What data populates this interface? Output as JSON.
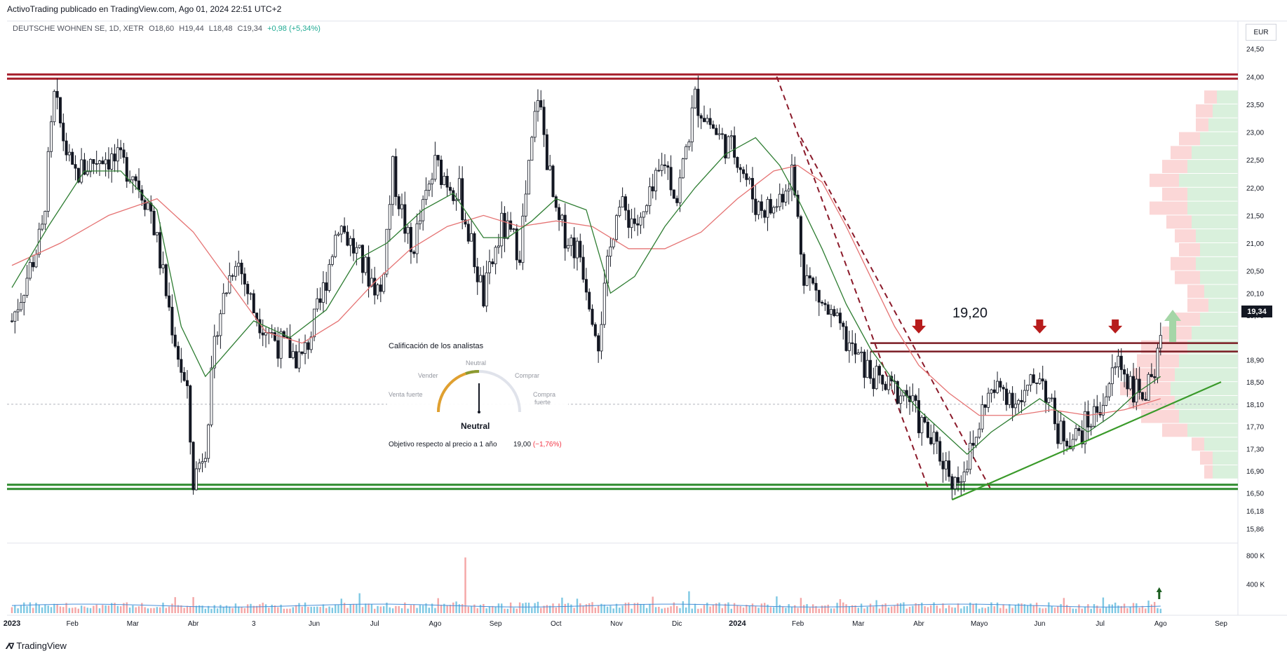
{
  "header": {
    "published": "ActivoTrading publicado en TradingView.com, Ago 01, 2024 22:51 UTC+2",
    "symbol": "DEUTSCHE WOHNEN SE, 1D, XETR",
    "open": "O18,60",
    "high": "H19,44",
    "low": "L18,48",
    "close": "C19,34",
    "change": "+0,98 (+5,34%)"
  },
  "currency": "EUR",
  "last_price_label": "19,34",
  "level_label": "19,20",
  "footer_brand": "TradingView",
  "analyst_widget": {
    "title": "Calificación de los analistas",
    "labels": {
      "strong_sell": "Venta fuerte",
      "sell": "Vender",
      "neutral": "Neutral",
      "buy": "Comprar",
      "strong_buy_1": "Compra",
      "strong_buy_2": "fuerte"
    },
    "rating": "Neutral",
    "objective_label": "Objetivo respecto al precio a 1 año",
    "objective_value": "19,00",
    "objective_change": "(−1,76%)"
  },
  "colors": {
    "up": "#22ab94",
    "down": "#131722",
    "resistance": "#a61d2a",
    "support": "#2e8b2e",
    "sma_fast": "#2e7d32",
    "sma_slow": "#e57373",
    "trend_line": "#3a9a2a",
    "arrow_red": "#b71c1c",
    "arrow_green": "#a5d6a7",
    "vol_up": "#7ec8e3",
    "vol_down": "#f4a6a6"
  },
  "chart_data": {
    "type": "candlestick",
    "ylim": [
      15.6,
      25.0
    ],
    "y_ticks": [
      "24,50",
      "24,00",
      "23,50",
      "23,00",
      "22,50",
      "22,00",
      "21,50",
      "21,00",
      "20,50",
      "20,10",
      "19,70",
      "18,90",
      "18,50",
      "18,10",
      "17,70",
      "17,30",
      "16,90",
      "16,50",
      "16,18",
      "15,86"
    ],
    "y_tick_values": [
      24.5,
      24.0,
      23.5,
      23.0,
      22.5,
      22.0,
      21.5,
      21.0,
      20.5,
      20.1,
      19.7,
      18.9,
      18.5,
      18.1,
      17.7,
      17.3,
      16.9,
      16.5,
      16.18,
      15.86
    ],
    "volume_ticks": [
      "800 K",
      "400 K"
    ],
    "volume_tick_values": [
      800,
      400
    ],
    "x_ticks": [
      "2023",
      "Feb",
      "Mar",
      "Abr",
      "3",
      "Jun",
      "Jul",
      "Ago",
      "Sep",
      "Oct",
      "Nov",
      "Dic",
      "2024",
      "Feb",
      "Mar",
      "Abr",
      "Mayo",
      "Jun",
      "Jul",
      "Ago",
      "Sep"
    ],
    "x_tick_months": [
      0,
      1,
      2,
      3,
      4,
      5,
      6,
      7,
      8,
      9,
      10,
      11,
      12,
      13,
      14,
      15,
      16,
      17,
      18,
      19,
      20
    ],
    "monthly_closes": [
      {
        "m": 0.0,
        "v": 19.6
      },
      {
        "m": 0.5,
        "v": 21.2
      },
      {
        "m": 0.7,
        "v": 23.6
      },
      {
        "m": 1.0,
        "v": 22.2
      },
      {
        "m": 1.5,
        "v": 22.6
      },
      {
        "m": 2.0,
        "v": 22.3
      },
      {
        "m": 2.3,
        "v": 21.6
      },
      {
        "m": 2.6,
        "v": 19.8
      },
      {
        "m": 2.9,
        "v": 18.2
      },
      {
        "m": 3.0,
        "v": 16.7
      },
      {
        "m": 3.2,
        "v": 17.4
      },
      {
        "m": 3.4,
        "v": 19.6
      },
      {
        "m": 3.7,
        "v": 20.8
      },
      {
        "m": 4.0,
        "v": 19.8
      },
      {
        "m": 4.4,
        "v": 19.2
      },
      {
        "m": 4.8,
        "v": 18.9
      },
      {
        "m": 5.1,
        "v": 19.9
      },
      {
        "m": 5.4,
        "v": 21.4
      },
      {
        "m": 5.8,
        "v": 20.6
      },
      {
        "m": 6.1,
        "v": 20.1
      },
      {
        "m": 6.3,
        "v": 22.3
      },
      {
        "m": 6.6,
        "v": 20.8
      },
      {
        "m": 7.0,
        "v": 22.4
      },
      {
        "m": 7.4,
        "v": 21.9
      },
      {
        "m": 7.8,
        "v": 20.0
      },
      {
        "m": 8.1,
        "v": 21.3
      },
      {
        "m": 8.4,
        "v": 20.9
      },
      {
        "m": 8.7,
        "v": 23.7
      },
      {
        "m": 9.0,
        "v": 21.4
      },
      {
        "m": 9.4,
        "v": 20.8
      },
      {
        "m": 9.7,
        "v": 19.3
      },
      {
        "m": 10.0,
        "v": 21.7
      },
      {
        "m": 10.4,
        "v": 21.3
      },
      {
        "m": 10.8,
        "v": 22.5
      },
      {
        "m": 11.0,
        "v": 21.8
      },
      {
        "m": 11.3,
        "v": 23.6
      },
      {
        "m": 11.7,
        "v": 22.9
      },
      {
        "m": 12.0,
        "v": 22.6
      },
      {
        "m": 12.3,
        "v": 21.7
      },
      {
        "m": 12.6,
        "v": 21.6
      },
      {
        "m": 12.9,
        "v": 22.3
      },
      {
        "m": 13.1,
        "v": 20.5
      },
      {
        "m": 13.4,
        "v": 19.9
      },
      {
        "m": 13.7,
        "v": 19.4
      },
      {
        "m": 14.0,
        "v": 18.9
      },
      {
        "m": 14.4,
        "v": 18.4
      },
      {
        "m": 14.8,
        "v": 18.3
      },
      {
        "m": 15.0,
        "v": 17.8
      },
      {
        "m": 15.4,
        "v": 17.1
      },
      {
        "m": 15.6,
        "v": 16.7
      },
      {
        "m": 15.9,
        "v": 17.3
      },
      {
        "m": 16.1,
        "v": 18.2
      },
      {
        "m": 16.4,
        "v": 18.4
      },
      {
        "m": 16.7,
        "v": 18.1
      },
      {
        "m": 17.0,
        "v": 18.7
      },
      {
        "m": 17.3,
        "v": 17.6
      },
      {
        "m": 17.6,
        "v": 17.5
      },
      {
        "m": 17.9,
        "v": 17.9
      },
      {
        "m": 18.1,
        "v": 18.3
      },
      {
        "m": 18.3,
        "v": 18.9
      },
      {
        "m": 18.6,
        "v": 18.3
      },
      {
        "m": 18.9,
        "v": 18.4
      },
      {
        "m": 19.0,
        "v": 19.34
      }
    ],
    "sma_fast": [
      {
        "m": 0.0,
        "v": 20.2
      },
      {
        "m": 0.6,
        "v": 21.3
      },
      {
        "m": 1.2,
        "v": 22.3
      },
      {
        "m": 1.8,
        "v": 22.3
      },
      {
        "m": 2.4,
        "v": 21.6
      },
      {
        "m": 2.8,
        "v": 19.5
      },
      {
        "m": 3.2,
        "v": 18.6
      },
      {
        "m": 3.6,
        "v": 19.1
      },
      {
        "m": 4.0,
        "v": 19.6
      },
      {
        "m": 4.6,
        "v": 19.3
      },
      {
        "m": 5.2,
        "v": 19.8
      },
      {
        "m": 5.7,
        "v": 20.7
      },
      {
        "m": 6.2,
        "v": 21.0
      },
      {
        "m": 6.8,
        "v": 21.6
      },
      {
        "m": 7.3,
        "v": 21.9
      },
      {
        "m": 7.8,
        "v": 21.1
      },
      {
        "m": 8.2,
        "v": 21.1
      },
      {
        "m": 8.6,
        "v": 21.4
      },
      {
        "m": 9.0,
        "v": 21.8
      },
      {
        "m": 9.5,
        "v": 21.6
      },
      {
        "m": 9.9,
        "v": 20.1
      },
      {
        "m": 10.3,
        "v": 20.4
      },
      {
        "m": 10.8,
        "v": 21.3
      },
      {
        "m": 11.3,
        "v": 22.0
      },
      {
        "m": 11.8,
        "v": 22.6
      },
      {
        "m": 12.3,
        "v": 22.9
      },
      {
        "m": 12.7,
        "v": 22.4
      },
      {
        "m": 13.0,
        "v": 21.8
      },
      {
        "m": 13.4,
        "v": 20.9
      },
      {
        "m": 13.8,
        "v": 19.9
      },
      {
        "m": 14.2,
        "v": 19.1
      },
      {
        "m": 14.6,
        "v": 18.5
      },
      {
        "m": 15.0,
        "v": 18.0
      },
      {
        "m": 15.4,
        "v": 17.6
      },
      {
        "m": 15.8,
        "v": 17.2
      },
      {
        "m": 16.2,
        "v": 17.6
      },
      {
        "m": 16.6,
        "v": 17.9
      },
      {
        "m": 17.0,
        "v": 18.2
      },
      {
        "m": 17.4,
        "v": 17.9
      },
      {
        "m": 17.8,
        "v": 17.6
      },
      {
        "m": 18.2,
        "v": 17.9
      },
      {
        "m": 18.6,
        "v": 18.3
      },
      {
        "m": 19.0,
        "v": 18.6
      }
    ],
    "sma_slow": [
      {
        "m": 0.0,
        "v": 20.6
      },
      {
        "m": 0.8,
        "v": 21.0
      },
      {
        "m": 1.6,
        "v": 21.5
      },
      {
        "m": 2.4,
        "v": 21.8
      },
      {
        "m": 3.0,
        "v": 21.2
      },
      {
        "m": 3.6,
        "v": 20.3
      },
      {
        "m": 4.2,
        "v": 19.4
      },
      {
        "m": 4.8,
        "v": 19.2
      },
      {
        "m": 5.4,
        "v": 19.6
      },
      {
        "m": 6.0,
        "v": 20.3
      },
      {
        "m": 6.6,
        "v": 20.9
      },
      {
        "m": 7.2,
        "v": 21.3
      },
      {
        "m": 7.8,
        "v": 21.5
      },
      {
        "m": 8.4,
        "v": 21.3
      },
      {
        "m": 9.0,
        "v": 21.4
      },
      {
        "m": 9.6,
        "v": 21.3
      },
      {
        "m": 10.2,
        "v": 20.9
      },
      {
        "m": 10.8,
        "v": 20.9
      },
      {
        "m": 11.4,
        "v": 21.2
      },
      {
        "m": 12.0,
        "v": 21.8
      },
      {
        "m": 12.6,
        "v": 22.3
      },
      {
        "m": 13.0,
        "v": 22.4
      },
      {
        "m": 13.4,
        "v": 22.1
      },
      {
        "m": 13.8,
        "v": 21.3
      },
      {
        "m": 14.2,
        "v": 20.4
      },
      {
        "m": 14.6,
        "v": 19.5
      },
      {
        "m": 15.0,
        "v": 18.8
      },
      {
        "m": 15.5,
        "v": 18.3
      },
      {
        "m": 16.0,
        "v": 17.9
      },
      {
        "m": 16.6,
        "v": 17.9
      },
      {
        "m": 17.2,
        "v": 18.0
      },
      {
        "m": 17.8,
        "v": 17.9
      },
      {
        "m": 18.4,
        "v": 18.0
      },
      {
        "m": 19.0,
        "v": 18.2
      }
    ],
    "resistance_level": 24.0,
    "support_level": 16.6,
    "level_19_20": [
      19.2,
      19.05
    ],
    "dashed_channel": [
      {
        "from": {
          "m": 12.65,
          "v": 24.0
        },
        "to": {
          "m": 15.15,
          "v": 16.6
        }
      },
      {
        "from": {
          "m": 13.05,
          "v": 22.9
        },
        "to": {
          "m": 16.2,
          "v": 16.55
        }
      }
    ],
    "trend_line": {
      "from": {
        "m": 15.55,
        "v": 16.38
      },
      "to": {
        "m": 20.0,
        "v": 18.5
      }
    },
    "arrows_down": [
      {
        "m": 15.0,
        "v": 19.4
      },
      {
        "m": 17.0,
        "v": 19.4
      },
      {
        "m": 18.25,
        "v": 19.4
      }
    ],
    "arrow_up": {
      "m": 19.2,
      "v": 19.6
    },
    "volume_profile": [
      {
        "v": 23.5,
        "up": 0.25,
        "down": 0.15
      },
      {
        "v": 23.25,
        "up": 0.3,
        "down": 0.2
      },
      {
        "v": 23.0,
        "up": 0.35,
        "down": 0.15
      },
      {
        "v": 22.75,
        "up": 0.45,
        "down": 0.25
      },
      {
        "v": 22.5,
        "up": 0.55,
        "down": 0.25
      },
      {
        "v": 22.25,
        "up": 0.6,
        "down": 0.3
      },
      {
        "v": 22.0,
        "up": 0.7,
        "down": 0.35
      },
      {
        "v": 21.75,
        "up": 0.6,
        "down": 0.3
      },
      {
        "v": 21.5,
        "up": 0.6,
        "down": 0.45
      },
      {
        "v": 21.25,
        "up": 0.55,
        "down": 0.3
      },
      {
        "v": 21.0,
        "up": 0.5,
        "down": 0.25
      },
      {
        "v": 20.75,
        "up": 0.45,
        "down": 0.25
      },
      {
        "v": 20.5,
        "up": 0.5,
        "down": 0.3
      },
      {
        "v": 20.25,
        "up": 0.45,
        "down": 0.3
      },
      {
        "v": 20.0,
        "up": 0.4,
        "down": 0.2
      },
      {
        "v": 19.75,
        "up": 0.35,
        "down": 0.25
      },
      {
        "v": 19.5,
        "up": 0.45,
        "down": 0.3
      },
      {
        "v": 19.25,
        "up": 0.55,
        "down": 0.35
      },
      {
        "v": 19.0,
        "up": 0.6,
        "down": 0.55
      },
      {
        "v": 18.75,
        "up": 0.7,
        "down": 0.5
      },
      {
        "v": 18.5,
        "up": 0.75,
        "down": 0.5
      },
      {
        "v": 18.25,
        "up": 0.8,
        "down": 0.6
      },
      {
        "v": 18.0,
        "up": 0.75,
        "down": 0.55
      },
      {
        "v": 17.75,
        "up": 0.7,
        "down": 0.45
      },
      {
        "v": 17.5,
        "up": 0.6,
        "down": 0.3
      },
      {
        "v": 17.25,
        "up": 0.4,
        "down": 0.15
      },
      {
        "v": 17.0,
        "up": 0.3,
        "down": 0.15
      },
      {
        "v": 16.75,
        "up": 0.3,
        "down": 0.1
      }
    ]
  }
}
